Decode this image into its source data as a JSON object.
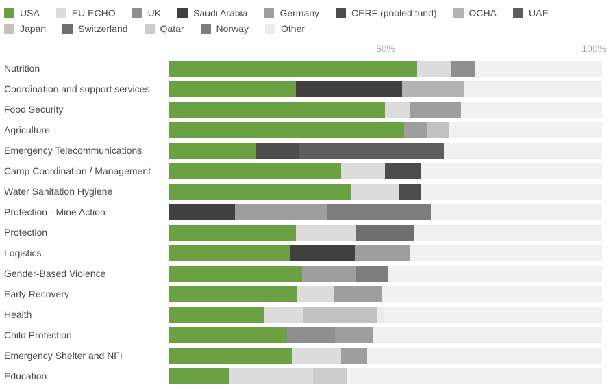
{
  "chart_data": {
    "type": "bar",
    "variant": "stacked_horizontal",
    "title": "",
    "xlabel": "",
    "ylabel": "",
    "unit": "percent",
    "xlim": [
      0,
      100
    ],
    "grid": true,
    "legend_position": "top",
    "ticks": [
      {
        "label": "50%",
        "position": 50
      },
      {
        "label": "100%",
        "position": 100
      }
    ],
    "donors": [
      {
        "name": "USA",
        "color": "#6ba143"
      },
      {
        "name": "EU ECHO",
        "color": "#dcdcdc"
      },
      {
        "name": "UK",
        "color": "#8f8f8f"
      },
      {
        "name": "Saudi Arabia",
        "color": "#404040"
      },
      {
        "name": "Germany",
        "color": "#9e9e9e"
      },
      {
        "name": "CERF (pooled fund)",
        "color": "#4d4d4d"
      },
      {
        "name": "OCHA",
        "color": "#b3b3b3"
      },
      {
        "name": "UAE",
        "color": "#5d5d5d"
      },
      {
        "name": "Japan",
        "color": "#c2c2c2"
      },
      {
        "name": "Switzerland",
        "color": "#6f6f6f"
      },
      {
        "name": "Qatar",
        "color": "#cccccc"
      },
      {
        "name": "Norway",
        "color": "#7d7d7d"
      },
      {
        "name": "Other",
        "color": "#ececec"
      }
    ],
    "rows": [
      {
        "category": "Nutrition",
        "segments": [
          {
            "donor": "USA",
            "value": 57.3
          },
          {
            "donor": "EU ECHO",
            "value": 7.9
          },
          {
            "donor": "UK",
            "value": 5.4
          }
        ]
      },
      {
        "category": "Coordination and support services",
        "segments": [
          {
            "donor": "USA",
            "value": 29.3
          },
          {
            "donor": "Saudi Arabia",
            "value": 24.5
          },
          {
            "donor": "OCHA",
            "value": 14.4
          }
        ]
      },
      {
        "category": "Food Security",
        "segments": [
          {
            "donor": "USA",
            "value": 49.8
          },
          {
            "donor": "EU ECHO",
            "value": 5.9
          },
          {
            "donor": "Germany",
            "value": 11.7
          }
        ]
      },
      {
        "category": "Agriculture",
        "segments": [
          {
            "donor": "USA",
            "value": 54.3
          },
          {
            "donor": "Germany",
            "value": 5.2
          },
          {
            "donor": "Japan",
            "value": 5.1
          }
        ]
      },
      {
        "category": "Emergency Telecommunications",
        "segments": [
          {
            "donor": "USA",
            "value": 20.1
          },
          {
            "donor": "CERF (pooled fund)",
            "value": 9.8
          },
          {
            "donor": "UAE",
            "value": 33.5
          }
        ]
      },
      {
        "category": "Camp Coordination / Management",
        "segments": [
          {
            "donor": "USA",
            "value": 39.7
          },
          {
            "donor": "EU ECHO",
            "value": 10.1
          },
          {
            "donor": "CERF (pooled fund)",
            "value": 8.5
          }
        ]
      },
      {
        "category": "Water Sanitation Hygiene",
        "segments": [
          {
            "donor": "USA",
            "value": 42.1
          },
          {
            "donor": "EU ECHO",
            "value": 10.9
          },
          {
            "donor": "CERF (pooled fund)",
            "value": 5.1
          }
        ]
      },
      {
        "category": "Protection - Mine Action",
        "segments": [
          {
            "donor": "Saudi Arabia",
            "value": 15.2
          },
          {
            "donor": "Germany",
            "value": 21.2
          },
          {
            "donor": "Norway",
            "value": 24.1
          }
        ]
      },
      {
        "category": "Protection",
        "segments": [
          {
            "donor": "USA",
            "value": 29.3
          },
          {
            "donor": "EU ECHO",
            "value": 13.8
          },
          {
            "donor": "Switzerland",
            "value": 13.4
          }
        ]
      },
      {
        "category": "Logistics",
        "segments": [
          {
            "donor": "USA",
            "value": 28.0
          },
          {
            "donor": "Saudi Arabia",
            "value": 14.9
          },
          {
            "donor": "Germany",
            "value": 12.8
          }
        ]
      },
      {
        "category": "Gender-Based Violence",
        "segments": [
          {
            "donor": "USA",
            "value": 30.7
          },
          {
            "donor": "Germany",
            "value": 12.3
          },
          {
            "donor": "Norway",
            "value": 7.6
          }
        ]
      },
      {
        "category": "Early Recovery",
        "segments": [
          {
            "donor": "USA",
            "value": 29.6
          },
          {
            "donor": "EU ECHO",
            "value": 8.4
          },
          {
            "donor": "Germany",
            "value": 11.1
          }
        ]
      },
      {
        "category": "Health",
        "segments": [
          {
            "donor": "USA",
            "value": 21.8
          },
          {
            "donor": "EU ECHO",
            "value": 9.0
          },
          {
            "donor": "Japan",
            "value": 17.1
          },
          {
            "donor": "Other",
            "value": 1.6
          }
        ]
      },
      {
        "category": "Child Protection",
        "segments": [
          {
            "donor": "USA",
            "value": 27.2
          },
          {
            "donor": "UK",
            "value": 11.1
          },
          {
            "donor": "Germany",
            "value": 8.9
          }
        ]
      },
      {
        "category": "Emergency Shelter and NFI",
        "segments": [
          {
            "donor": "USA",
            "value": 28.5
          },
          {
            "donor": "EU ECHO",
            "value": 11.2
          },
          {
            "donor": "Germany",
            "value": 6.0
          }
        ]
      },
      {
        "category": "Education",
        "segments": [
          {
            "donor": "USA",
            "value": 13.9
          },
          {
            "donor": "EU ECHO",
            "value": 19.3
          },
          {
            "donor": "Qatar",
            "value": 7.9
          }
        ]
      }
    ]
  },
  "styles": {
    "background": "#ffffff",
    "track_color": "#f1f1f1",
    "grid_color": "#ffffff",
    "label_color": "#4a4a4a",
    "tick_color": "#a2a2a2",
    "accent": "#6ba143"
  }
}
